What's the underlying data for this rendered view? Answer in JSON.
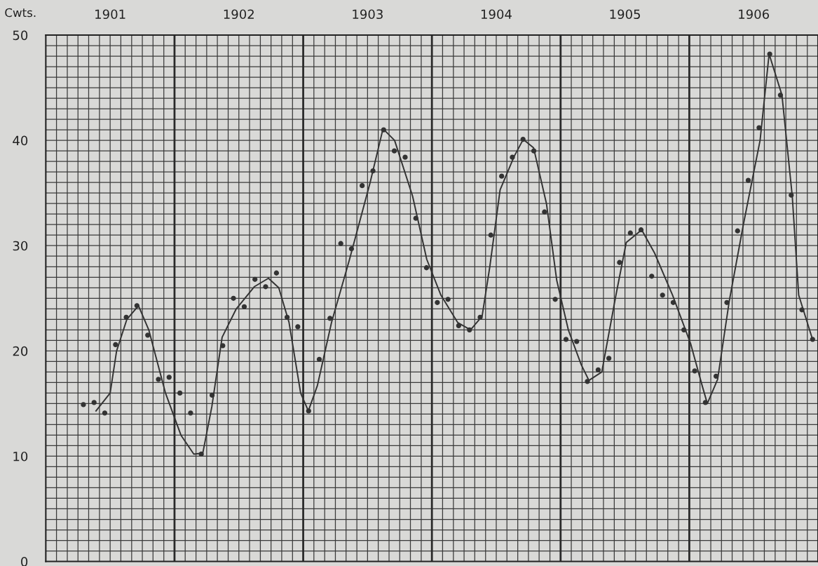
{
  "chart_data": {
    "type": "scatter",
    "ylabel": "Cwts.",
    "xlim": [
      1901,
      1907
    ],
    "ylim": [
      0,
      50
    ],
    "xticks": [
      {
        "value": 1901,
        "label": null
      },
      {
        "value": 1901.083,
        "label": null
      },
      {
        "value": 1901.167,
        "label": null
      },
      {
        "value": 1901.25,
        "label": null
      },
      {
        "value": 1901.333,
        "label": null
      },
      {
        "value": 1901.417,
        "label": null
      },
      {
        "value": 1901.5,
        "label": "1901"
      },
      {
        "value": 1901.583,
        "label": null
      },
      {
        "value": 1901.667,
        "label": null
      },
      {
        "value": 1901.75,
        "label": null
      },
      {
        "value": 1901.833,
        "label": null
      },
      {
        "value": 1901.917,
        "label": null
      },
      {
        "value": 1902.083,
        "label": null
      },
      {
        "value": 1902.167,
        "label": null
      },
      {
        "value": 1902.25,
        "label": null
      },
      {
        "value": 1902.333,
        "label": null
      },
      {
        "value": 1902.417,
        "label": null
      },
      {
        "value": 1902.5,
        "label": "1902"
      },
      {
        "value": 1902.583,
        "label": null
      },
      {
        "value": 1902.667,
        "label": null
      },
      {
        "value": 1902.75,
        "label": null
      },
      {
        "value": 1902.833,
        "label": null
      },
      {
        "value": 1902.917,
        "label": null
      },
      {
        "value": 1903.083,
        "label": null
      },
      {
        "value": 1903.167,
        "label": null
      },
      {
        "value": 1903.25,
        "label": null
      },
      {
        "value": 1903.333,
        "label": null
      },
      {
        "value": 1903.417,
        "label": null
      },
      {
        "value": 1903.5,
        "label": "1903"
      },
      {
        "value": 1903.583,
        "label": null
      },
      {
        "value": 1903.667,
        "label": null
      },
      {
        "value": 1903.75,
        "label": null
      },
      {
        "value": 1903.833,
        "label": null
      },
      {
        "value": 1903.917,
        "label": null
      },
      {
        "value": 1904.083,
        "label": null
      },
      {
        "value": 1904.167,
        "label": null
      },
      {
        "value": 1904.25,
        "label": null
      },
      {
        "value": 1904.333,
        "label": null
      },
      {
        "value": 1904.417,
        "label": null
      },
      {
        "value": 1904.5,
        "label": "1904"
      },
      {
        "value": 1904.583,
        "label": null
      },
      {
        "value": 1904.667,
        "label": null
      },
      {
        "value": 1904.75,
        "label": null
      },
      {
        "value": 1904.833,
        "label": null
      },
      {
        "value": 1904.917,
        "label": null
      },
      {
        "value": 1905.083,
        "label": null
      },
      {
        "value": 1905.167,
        "label": null
      },
      {
        "value": 1905.25,
        "label": null
      },
      {
        "value": 1905.333,
        "label": null
      },
      {
        "value": 1905.417,
        "label": null
      },
      {
        "value": 1905.5,
        "label": "1905"
      },
      {
        "value": 1905.583,
        "label": null
      },
      {
        "value": 1905.667,
        "label": null
      },
      {
        "value": 1905.75,
        "label": null
      },
      {
        "value": 1905.833,
        "label": null
      },
      {
        "value": 1905.917,
        "label": null
      },
      {
        "value": 1906.083,
        "label": null
      },
      {
        "value": 1906.167,
        "label": null
      },
      {
        "value": 1906.25,
        "label": null
      },
      {
        "value": 1906.333,
        "label": null
      },
      {
        "value": 1906.417,
        "label": null
      },
      {
        "value": 1906.5,
        "label": "1906"
      },
      {
        "value": 1906.583,
        "label": null
      },
      {
        "value": 1906.667,
        "label": null
      },
      {
        "value": 1906.75,
        "label": null
      },
      {
        "value": 1906.833,
        "label": null
      },
      {
        "value": 1906.917,
        "label": null
      },
      {
        "value": 1907,
        "label": null
      }
    ],
    "yticks": [
      0,
      {
        "value": 1,
        "label": null
      },
      {
        "value": 2,
        "label": null
      },
      {
        "value": 3,
        "label": null
      },
      {
        "value": 4,
        "label": null
      },
      {
        "value": 5,
        "label": null
      },
      {
        "value": 6,
        "label": null
      },
      {
        "value": 7,
        "label": null
      },
      {
        "value": 8,
        "label": null
      },
      {
        "value": 9,
        "label": null
      },
      10,
      {
        "value": 11,
        "label": null
      },
      {
        "value": 12,
        "label": null
      },
      {
        "value": 13,
        "label": null
      },
      {
        "value": 14,
        "label": null
      },
      {
        "value": 15,
        "label": null
      },
      {
        "value": 16,
        "label": null
      },
      {
        "value": 17,
        "label": null
      },
      {
        "value": 18,
        "label": null
      },
      {
        "value": 19,
        "label": null
      },
      20,
      {
        "value": 21,
        "label": null
      },
      {
        "value": 22,
        "label": null
      },
      {
        "value": 23,
        "label": null
      },
      {
        "value": 24,
        "label": null
      },
      {
        "value": 25,
        "label": null
      },
      {
        "value": 26,
        "label": null
      },
      {
        "value": 27,
        "label": null
      },
      {
        "value": 28,
        "label": null
      },
      {
        "value": 29,
        "label": null
      },
      30,
      {
        "value": 31,
        "label": null
      },
      {
        "value": 32,
        "label": null
      },
      {
        "value": 33,
        "label": null
      },
      {
        "value": 34,
        "label": null
      },
      {
        "value": 35,
        "label": null
      },
      {
        "value": 36,
        "label": null
      },
      {
        "value": 37,
        "label": null
      },
      {
        "value": 38,
        "label": null
      },
      {
        "value": 39,
        "label": null
      },
      40,
      {
        "value": 41,
        "label": null
      },
      {
        "value": 42,
        "label": null
      },
      {
        "value": 43,
        "label": null
      },
      {
        "value": 44,
        "label": null
      },
      {
        "value": 45,
        "label": null
      },
      {
        "value": 46,
        "label": null
      },
      {
        "value": 47,
        "label": null
      },
      {
        "value": 48,
        "label": null
      },
      {
        "value": 49,
        "label": null
      },
      50
    ],
    "grid": true,
    "ref_lines": [
      {
        "axis": "x",
        "value": 1902,
        "color": "#2a2a2a"
      },
      {
        "axis": "x",
        "value": 1903,
        "color": "#2a2a2a"
      },
      {
        "axis": "x",
        "value": 1904,
        "color": "#2a2a2a"
      },
      {
        "axis": "x",
        "value": 1905,
        "color": "#2a2a2a"
      },
      {
        "axis": "x",
        "value": 1906,
        "color": "#2a2a2a"
      }
    ],
    "series": [
      {
        "color": "#333333",
        "marker": "circle",
        "x": [
          1901.292,
          1901.375,
          1901.458,
          1901.542,
          1901.625,
          1901.708,
          1901.792,
          1901.875,
          1901.958,
          1902.042,
          1902.125,
          1902.208,
          1902.292,
          1902.375,
          1902.458,
          1902.542,
          1902.625,
          1902.708,
          1902.792,
          1902.875,
          1902.958,
          1903.042,
          1903.125,
          1903.208,
          1903.292,
          1903.375,
          1903.458,
          1903.542,
          1903.625,
          1903.708,
          1903.792,
          1903.875,
          1903.958,
          1904.042,
          1904.125,
          1904.208,
          1904.292,
          1904.375,
          1904.458,
          1904.542,
          1904.625,
          1904.708,
          1904.792,
          1904.875,
          1904.958,
          1905.042,
          1905.125,
          1905.208,
          1905.292,
          1905.375,
          1905.458,
          1905.542,
          1905.625,
          1905.708,
          1905.792,
          1905.875,
          1905.958,
          1906.042,
          1906.125,
          1906.208,
          1906.292,
          1906.375,
          1906.458,
          1906.542,
          1906.625,
          1906.708,
          1906.792,
          1906.875,
          1906.958
        ],
        "values": [
          14.9,
          15.1,
          14.1,
          20.6,
          23.2,
          24.3,
          21.5,
          17.3,
          17.5,
          16.0,
          14.1,
          10.2,
          15.8,
          20.5,
          25.0,
          24.2,
          26.8,
          26.1,
          27.4,
          23.2,
          22.3,
          14.3,
          19.2,
          23.1,
          30.2,
          29.7,
          35.7,
          37.1,
          41.0,
          39.0,
          38.4,
          32.6,
          27.9,
          24.6,
          24.9,
          22.4,
          22.0,
          23.2,
          31.0,
          36.6,
          38.4,
          40.1,
          39.0,
          33.2,
          24.9,
          21.1,
          20.9,
          17.1,
          18.2,
          19.3,
          28.4,
          31.2,
          31.5,
          27.1,
          25.3,
          24.6,
          22.0,
          18.1,
          15.1,
          17.6,
          24.6,
          31.4,
          36.2,
          41.2,
          48.2,
          44.3,
          34.8,
          23.9,
          21.1
        ]
      },
      {
        "type": "line",
        "color": "#333333",
        "line_style": "solid",
        "marker": "none",
        "x": [
          1901.39,
          1901.5,
          1901.55,
          1901.63,
          1901.72,
          1901.8,
          1901.93,
          1902.05,
          1902.15,
          1902.22,
          1902.29,
          1902.37,
          1902.48,
          1902.62,
          1902.73,
          1902.81,
          1902.89,
          1902.98,
          1903.04,
          1903.11,
          1903.22,
          1903.36,
          1903.52,
          1903.62,
          1903.71,
          1903.85,
          1903.96,
          1904.07,
          1904.2,
          1904.3,
          1904.39,
          1904.45,
          1904.53,
          1904.64,
          1904.71,
          1904.79,
          1904.89,
          1904.97,
          1905.06,
          1905.16,
          1905.22,
          1905.32,
          1905.43,
          1905.51,
          1905.63,
          1905.73,
          1905.87,
          1906.01,
          1906.1,
          1906.14,
          1906.22,
          1906.31,
          1906.42,
          1906.55,
          1906.62,
          1906.72,
          1906.8,
          1906.85,
          1906.96
        ],
        "values": [
          14.3,
          16.0,
          20.0,
          23.0,
          24.3,
          22.0,
          16.0,
          12.0,
          10.2,
          10.3,
          14.7,
          21.3,
          24.0,
          26.1,
          26.9,
          26.0,
          22.7,
          16.0,
          14.3,
          16.7,
          22.7,
          28.7,
          36.0,
          41.1,
          40.0,
          34.7,
          28.7,
          25.3,
          22.7,
          22.0,
          23.3,
          28.0,
          35.3,
          38.5,
          40.1,
          39.3,
          34.0,
          26.7,
          22.0,
          18.7,
          17.2,
          18.0,
          25.3,
          30.3,
          31.5,
          29.3,
          25.3,
          20.7,
          16.7,
          15.0,
          17.3,
          24.7,
          32.0,
          40.0,
          48.2,
          44.3,
          34.7,
          25.3,
          21.0
        ]
      }
    ]
  }
}
